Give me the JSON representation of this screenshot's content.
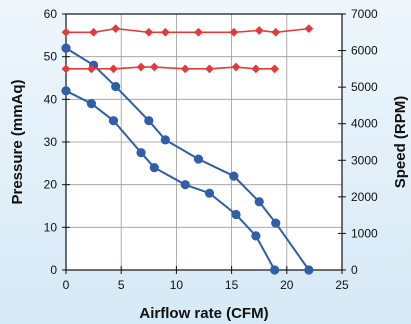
{
  "chart_data": {
    "type": "line",
    "title": "",
    "xlabel": "Airflow rate (CFM)",
    "ylabel_left": "Pressure (mmAq)",
    "ylabel_right": "Speed (RPM)",
    "xlim": [
      0,
      25
    ],
    "ylim_left": [
      0,
      60
    ],
    "ylim_right": [
      0,
      7000
    ],
    "x_ticks": [
      0,
      5,
      10,
      15,
      20,
      25
    ],
    "y_left_ticks": [
      0,
      10,
      20,
      30,
      40,
      50,
      60
    ],
    "y_right_ticks": [
      0,
      1000,
      2000,
      3000,
      4000,
      5000,
      6000,
      7000
    ],
    "grid": true,
    "legend": "none",
    "series": [
      {
        "axis": "left",
        "marker": "circle",
        "color": "#2f5fa8",
        "points": [
          [
            0,
            52
          ],
          [
            2.5,
            48
          ],
          [
            4.5,
            43
          ],
          [
            7.5,
            35
          ],
          [
            9,
            30.5
          ],
          [
            12,
            26
          ],
          [
            15.2,
            22
          ],
          [
            17.5,
            16
          ],
          [
            19,
            11
          ],
          [
            22,
            0
          ]
        ]
      },
      {
        "axis": "left",
        "marker": "circle",
        "color": "#2f5fa8",
        "points": [
          [
            0,
            42
          ],
          [
            2.3,
            39
          ],
          [
            4.3,
            35
          ],
          [
            6.8,
            27.5
          ],
          [
            8,
            24
          ],
          [
            10.8,
            20
          ],
          [
            13,
            18
          ],
          [
            15.4,
            13
          ],
          [
            17.2,
            8
          ],
          [
            18.9,
            0
          ]
        ]
      },
      {
        "axis": "right",
        "marker": "diamond",
        "color": "#e33b3b",
        "points": [
          [
            0,
            6500
          ],
          [
            2.5,
            6500
          ],
          [
            4.5,
            6600
          ],
          [
            7.5,
            6500
          ],
          [
            9,
            6500
          ],
          [
            12,
            6500
          ],
          [
            15.2,
            6500
          ],
          [
            17.5,
            6550
          ],
          [
            19,
            6500
          ],
          [
            22,
            6600
          ]
        ]
      },
      {
        "axis": "right",
        "marker": "diamond",
        "color": "#e33b3b",
        "points": [
          [
            0,
            5500
          ],
          [
            2.3,
            5500
          ],
          [
            4.3,
            5500
          ],
          [
            6.8,
            5550
          ],
          [
            8,
            5550
          ],
          [
            10.8,
            5500
          ],
          [
            13,
            5500
          ],
          [
            15.4,
            5550
          ],
          [
            17.2,
            5500
          ],
          [
            18.9,
            5500
          ]
        ]
      }
    ]
  }
}
